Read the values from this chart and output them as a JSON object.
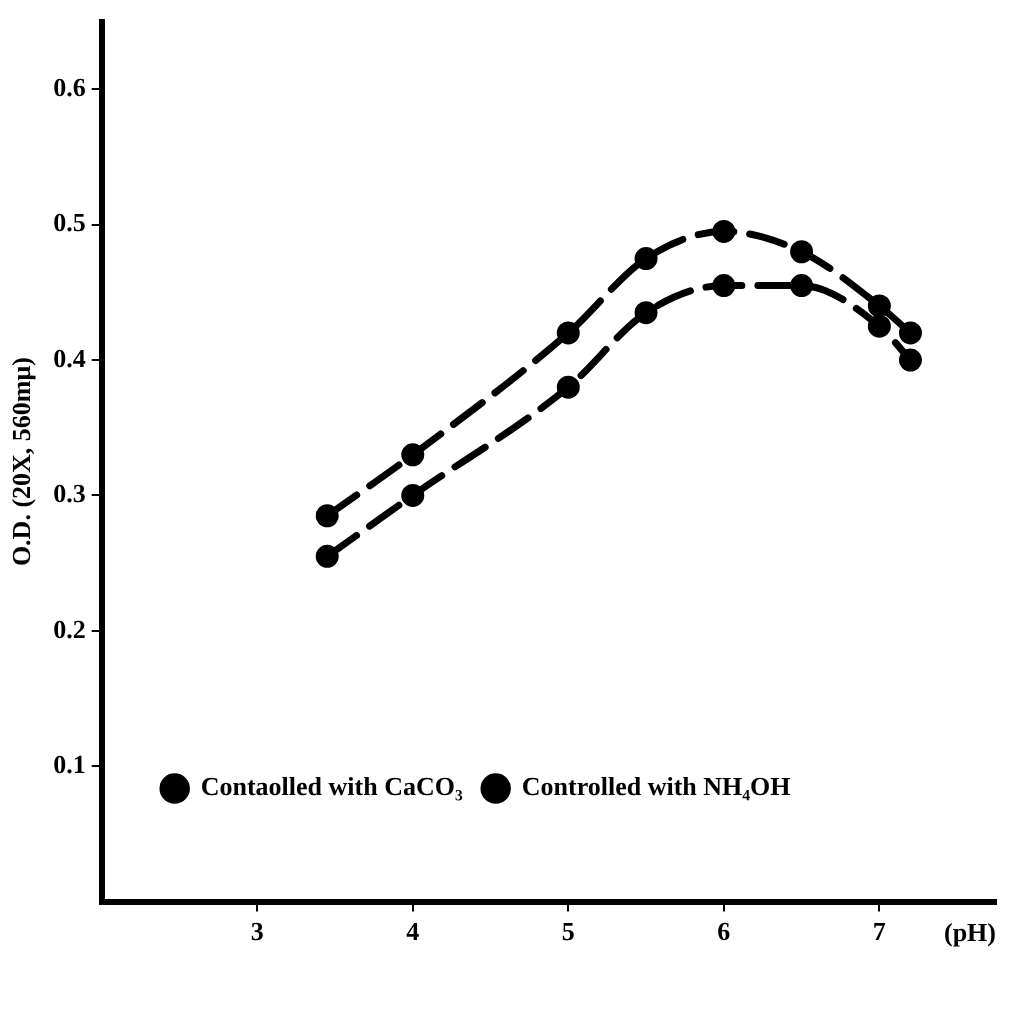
{
  "chart_data": {
    "type": "line",
    "xlabel": "(pH)",
    "ylabel": "O.D. (20X, 560mμ)",
    "xlim": [
      2,
      7.75
    ],
    "xticks": [
      3,
      4,
      5,
      6,
      7
    ],
    "ylim": [
      0,
      0.65
    ],
    "yticks": [
      0.1,
      0.2,
      0.3,
      0.4,
      0.5,
      0.6
    ],
    "grid": false,
    "legend": "bottom left",
    "marker": "circle",
    "line_style": "dashed",
    "series": [
      {
        "name": "Contaolled with CaCO₃",
        "color": "#000000",
        "x": [
          3.45,
          4,
          5,
          5.5,
          6,
          6.5,
          7,
          7.2
        ],
        "values": [
          0.285,
          0.33,
          0.42,
          0.475,
          0.495,
          0.48,
          0.44,
          0.42
        ]
      },
      {
        "name": "Controlled with NH₄OH",
        "color": "#000000",
        "x": [
          3.45,
          4,
          5,
          5.5,
          6,
          6.5,
          7,
          7.2
        ],
        "values": [
          0.255,
          0.3,
          0.38,
          0.435,
          0.455,
          0.455,
          0.425,
          0.4
        ]
      }
    ]
  }
}
